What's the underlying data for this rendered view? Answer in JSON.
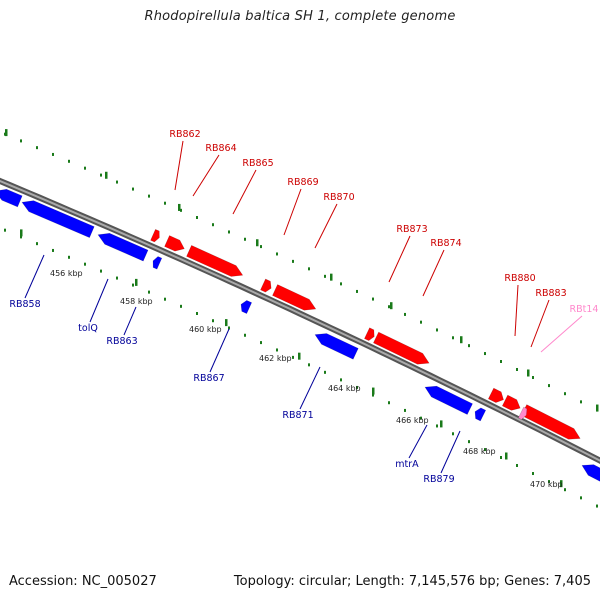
{
  "title": "Rhodopirellula baltica SH 1, complete genome",
  "footer": {
    "accession": "Accession: NC_005027",
    "stats": "Topology: circular; Length: 7,145,576 bp; Genes: 7,405"
  },
  "colors": {
    "forward_gene": "#ff0000",
    "reverse_gene": "#0000ff",
    "forward_label": "#cc0000",
    "reverse_label": "#000099",
    "trna": "#ff88cc",
    "tick": "#1a7a1a",
    "backbone": "#888888"
  },
  "scale_labels": [
    "456 kbp",
    "458 kbp",
    "460 kbp",
    "462 kbp",
    "464 kbp",
    "466 kbp",
    "468 kbp",
    "470 kbp"
  ],
  "forward_labels": [
    "RB862",
    "RB864",
    "RB865",
    "RB869",
    "RB870",
    "RB873",
    "RB874",
    "RB880",
    "RB883",
    "RBt14"
  ],
  "reverse_labels": [
    "RB858",
    "tolQ",
    "RB863",
    "RB867",
    "RB871",
    "mtrA",
    "RB879"
  ]
}
